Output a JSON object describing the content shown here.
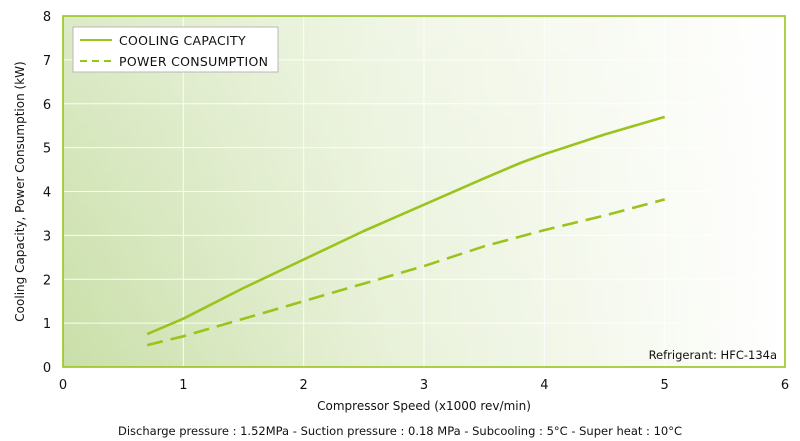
{
  "chart_data": {
    "type": "line",
    "xlabel": "Compressor Speed (x1000 rev/min)",
    "ylabel": "Cooling Capacity, Power Consumption (kW)",
    "xlim": [
      0,
      6
    ],
    "ylim": [
      0,
      8
    ],
    "xticks": [
      "0",
      "1",
      "2",
      "3",
      "4",
      "5",
      "6"
    ],
    "yticks": [
      "0",
      "1",
      "2",
      "3",
      "4",
      "5",
      "6",
      "7",
      "8"
    ],
    "grid": true,
    "legend_position": "top-left",
    "series": [
      {
        "name": "COOLING CAPACITY",
        "style": "solid",
        "color": "#9ac31c",
        "x": [
          0.7,
          1.0,
          1.5,
          2.0,
          2.5,
          3.0,
          3.5,
          3.8,
          4.0,
          4.5,
          5.0
        ],
        "y": [
          0.75,
          1.1,
          1.8,
          2.45,
          3.1,
          3.7,
          4.3,
          4.65,
          4.85,
          5.3,
          5.7
        ]
      },
      {
        "name": "POWER CONSUMPTION",
        "style": "dashed",
        "color": "#9ac31c",
        "x": [
          0.7,
          1.0,
          1.5,
          2.0,
          2.5,
          3.0,
          3.5,
          4.0,
          4.5,
          5.0
        ],
        "y": [
          0.5,
          0.7,
          1.1,
          1.5,
          1.9,
          2.3,
          2.75,
          3.12,
          3.45,
          3.82
        ]
      }
    ],
    "annotation": "Refrigerant: HFC-134a",
    "footer": "Discharge pressure : 1.52MPa  -  Suction pressure : 0.18 MPa  -  Subcooling : 5°C  -  Super heat : 10°C"
  }
}
